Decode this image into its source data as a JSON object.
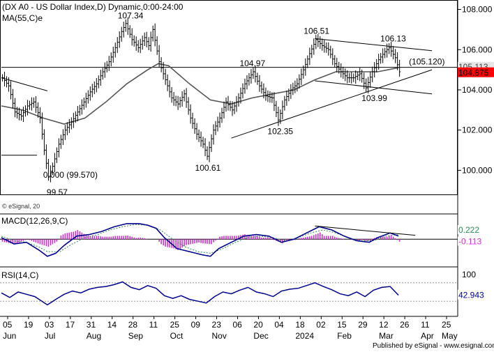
{
  "chart_data": {
    "type": "line",
    "title": "(DX A0 - US Dollar Index,D) Dynamic,0:00-24:00",
    "ma_label": "MA(55,C)e",
    "watermark": "© eSignal, 20",
    "footer": "Published by eSignal - www.esignal.com",
    "price_axis": {
      "min": 98.8,
      "max": 108.4,
      "ticks": [
        "108.000",
        "106.000",
        "104.000",
        "102.000",
        "100.000"
      ],
      "tick_values": [
        108,
        106,
        104,
        102,
        100
      ],
      "current_label": "104.875",
      "current_value": 104.875,
      "ma_current_label": "105.113",
      "ma_current_value": 105.113
    },
    "annotations": [
      {
        "text": "107.34",
        "value": 107.34,
        "bar": 59
      },
      {
        "text": "104.97",
        "value": 104.97,
        "bar": 120
      },
      {
        "text": "106.51",
        "value": 106.51,
        "bar": 150
      },
      {
        "text": "106.13",
        "value": 106.13,
        "bar": 184
      },
      {
        "text": "(105.120)",
        "value": 105.12,
        "bar": 199
      },
      {
        "text": "103.99",
        "value": 103.99,
        "bar": 175
      },
      {
        "text": "102.35",
        "value": 102.35,
        "bar": 132
      },
      {
        "text": "100.61",
        "value": 100.61,
        "bar": 98
      },
      {
        "text": "0.000 (99.570)",
        "value": 99.57,
        "bar": 22
      },
      {
        "text": "99.57",
        "value": 99.57,
        "bar": 22
      }
    ],
    "trendlines": [
      {
        "name": "downtrend-2023",
        "from": [
          0,
          104.6
        ],
        "to": [
          22,
          103.95
        ]
      },
      {
        "name": "support-2023",
        "from": [
          0,
          100.75
        ],
        "to": [
          17,
          100.75
        ]
      },
      {
        "name": "horizontal-105",
        "from": [
          0,
          105.12
        ],
        "to": [
          218,
          105.12
        ]
      },
      {
        "name": "channel-top",
        "from": [
          150,
          106.55
        ],
        "to": [
          206,
          105.95
        ]
      },
      {
        "name": "channel-bottom",
        "from": [
          150,
          104.45
        ],
        "to": [
          206,
          103.8
        ]
      },
      {
        "name": "rising-support",
        "from": [
          110,
          101.6
        ],
        "to": [
          206,
          105.0
        ]
      }
    ],
    "price_path": [
      [
        0,
        104.6
      ],
      [
        3,
        104.2
      ],
      [
        6,
        102.9
      ],
      [
        9,
        102.7
      ],
      [
        12,
        103.2
      ],
      [
        15,
        103.4
      ],
      [
        18,
        102.6
      ],
      [
        20,
        101.0
      ],
      [
        22,
        99.7
      ],
      [
        24,
        100.2
      ],
      [
        27,
        101.3
      ],
      [
        30,
        102.0
      ],
      [
        33,
        102.4
      ],
      [
        36,
        102.9
      ],
      [
        39,
        103.4
      ],
      [
        42,
        103.9
      ],
      [
        45,
        104.3
      ],
      [
        48,
        104.9
      ],
      [
        51,
        105.4
      ],
      [
        54,
        106.1
      ],
      [
        57,
        106.9
      ],
      [
        59,
        107.3
      ],
      [
        62,
        106.5
      ],
      [
        65,
        106.1
      ],
      [
        68,
        106.6
      ],
      [
        70,
        106.2
      ],
      [
        72,
        107.0
      ],
      [
        75,
        105.4
      ],
      [
        78,
        104.5
      ],
      [
        81,
        103.6
      ],
      [
        84,
        103.3
      ],
      [
        87,
        103.8
      ],
      [
        90,
        102.6
      ],
      [
        93,
        101.8
      ],
      [
        96,
        101.3
      ],
      [
        98,
        100.7
      ],
      [
        101,
        102.0
      ],
      [
        104,
        102.6
      ],
      [
        107,
        103.4
      ],
      [
        110,
        103.0
      ],
      [
        113,
        103.6
      ],
      [
        116,
        104.3
      ],
      [
        120,
        104.9
      ],
      [
        123,
        104.2
      ],
      [
        126,
        103.7
      ],
      [
        129,
        103.6
      ],
      [
        132,
        102.5
      ],
      [
        135,
        103.5
      ],
      [
        138,
        104.0
      ],
      [
        141,
        104.3
      ],
      [
        144,
        105.0
      ],
      [
        147,
        105.8
      ],
      [
        150,
        106.5
      ],
      [
        153,
        106.2
      ],
      [
        156,
        106.0
      ],
      [
        159,
        105.3
      ],
      [
        162,
        104.9
      ],
      [
        165,
        104.6
      ],
      [
        168,
        104.6
      ],
      [
        171,
        104.8
      ],
      [
        174,
        104.1
      ],
      [
        177,
        104.9
      ],
      [
        180,
        105.5
      ],
      [
        183,
        105.9
      ],
      [
        185,
        106.1
      ],
      [
        188,
        105.6
      ],
      [
        190,
        104.9
      ]
    ],
    "ma_path": [
      [
        0,
        103.2
      ],
      [
        10,
        103.0
      ],
      [
        20,
        102.6
      ],
      [
        30,
        102.3
      ],
      [
        40,
        102.6
      ],
      [
        50,
        103.4
      ],
      [
        60,
        104.3
      ],
      [
        70,
        105.0
      ],
      [
        75,
        105.3
      ],
      [
        80,
        105.2
      ],
      [
        90,
        104.3
      ],
      [
        100,
        103.5
      ],
      [
        110,
        103.3
      ],
      [
        120,
        103.6
      ],
      [
        130,
        103.8
      ],
      [
        140,
        104.0
      ],
      [
        150,
        104.5
      ],
      [
        160,
        104.9
      ],
      [
        170,
        104.9
      ],
      [
        180,
        104.9
      ],
      [
        190,
        105.1
      ]
    ],
    "macd": {
      "label": "MACD(12,26,9,C)",
      "min": -1.6,
      "max": 1.4,
      "zero": 0,
      "value_label": "0.222",
      "value": 0.222,
      "signal_label": "-0.113",
      "signal_value": -0.113,
      "macd_path": [
        [
          0,
          0.1
        ],
        [
          6,
          -0.3
        ],
        [
          12,
          -0.2
        ],
        [
          18,
          -0.7
        ],
        [
          22,
          -1.1
        ],
        [
          26,
          -0.9
        ],
        [
          30,
          -0.4
        ],
        [
          36,
          0.2
        ],
        [
          42,
          0.3
        ],
        [
          48,
          0.5
        ],
        [
          54,
          0.8
        ],
        [
          60,
          1.0
        ],
        [
          66,
          1.0
        ],
        [
          70,
          0.9
        ],
        [
          74,
          0.7
        ],
        [
          78,
          0.1
        ],
        [
          84,
          -0.6
        ],
        [
          90,
          -0.8
        ],
        [
          96,
          -1.0
        ],
        [
          100,
          -1.1
        ],
        [
          104,
          -0.6
        ],
        [
          110,
          -0.2
        ],
        [
          116,
          0.2
        ],
        [
          122,
          0.3
        ],
        [
          128,
          0.2
        ],
        [
          134,
          -0.2
        ],
        [
          140,
          0.0
        ],
        [
          146,
          0.4
        ],
        [
          152,
          0.8
        ],
        [
          158,
          0.6
        ],
        [
          164,
          0.2
        ],
        [
          170,
          -0.1
        ],
        [
          176,
          -0.2
        ],
        [
          180,
          0.1
        ],
        [
          186,
          0.4
        ],
        [
          190,
          0.2
        ]
      ],
      "signal_path": [
        [
          0,
          0.2
        ],
        [
          6,
          -0.1
        ],
        [
          12,
          -0.2
        ],
        [
          18,
          -0.5
        ],
        [
          22,
          -0.8
        ],
        [
          28,
          -0.8
        ],
        [
          34,
          -0.3
        ],
        [
          40,
          0.1
        ],
        [
          46,
          0.3
        ],
        [
          52,
          0.6
        ],
        [
          58,
          0.8
        ],
        [
          64,
          0.95
        ],
        [
          70,
          0.9
        ],
        [
          76,
          0.6
        ],
        [
          82,
          0.0
        ],
        [
          88,
          -0.5
        ],
        [
          94,
          -0.8
        ],
        [
          100,
          -0.9
        ],
        [
          106,
          -0.6
        ],
        [
          112,
          -0.2
        ],
        [
          118,
          0.1
        ],
        [
          124,
          0.2
        ],
        [
          130,
          0.1
        ],
        [
          136,
          -0.1
        ],
        [
          142,
          0.1
        ],
        [
          148,
          0.4
        ],
        [
          154,
          0.6
        ],
        [
          160,
          0.4
        ],
        [
          166,
          0.1
        ],
        [
          172,
          -0.1
        ],
        [
          178,
          -0.1
        ],
        [
          184,
          0.2
        ],
        [
          190,
          0.3
        ]
      ],
      "trendline": {
        "from": [
          150,
          0.85
        ],
        "to": [
          198,
          0.25
        ]
      }
    },
    "rsi": {
      "label": "RSI(14,C)",
      "min": 0,
      "max": 100,
      "ticks": [
        "100"
      ],
      "tick_values": [
        100
      ],
      "value_label": "42.943",
      "value": 42.943,
      "upper_level": 70,
      "lower_level": 30,
      "rsi_path": [
        [
          0,
          48
        ],
        [
          4,
          38
        ],
        [
          8,
          50
        ],
        [
          12,
          45
        ],
        [
          16,
          40
        ],
        [
          20,
          28
        ],
        [
          22,
          22
        ],
        [
          26,
          34
        ],
        [
          30,
          45
        ],
        [
          34,
          52
        ],
        [
          38,
          48
        ],
        [
          42,
          56
        ],
        [
          46,
          60
        ],
        [
          50,
          62
        ],
        [
          54,
          66
        ],
        [
          58,
          72
        ],
        [
          62,
          60
        ],
        [
          66,
          55
        ],
        [
          70,
          64
        ],
        [
          74,
          58
        ],
        [
          78,
          42
        ],
        [
          82,
          36
        ],
        [
          86,
          42
        ],
        [
          90,
          34
        ],
        [
          94,
          30
        ],
        [
          98,
          26
        ],
        [
          102,
          40
        ],
        [
          106,
          50
        ],
        [
          110,
          46
        ],
        [
          114,
          54
        ],
        [
          118,
          60
        ],
        [
          122,
          50
        ],
        [
          126,
          46
        ],
        [
          130,
          40
        ],
        [
          134,
          52
        ],
        [
          138,
          56
        ],
        [
          142,
          58
        ],
        [
          146,
          64
        ],
        [
          150,
          70
        ],
        [
          154,
          62
        ],
        [
          158,
          55
        ],
        [
          162,
          46
        ],
        [
          166,
          42
        ],
        [
          170,
          50
        ],
        [
          174,
          40
        ],
        [
          178,
          54
        ],
        [
          182,
          60
        ],
        [
          186,
          62
        ],
        [
          190,
          43
        ]
      ]
    },
    "x_axis": {
      "total_bars": 218,
      "date_labels": [
        {
          "text": "05",
          "bar": 3
        },
        {
          "text": "19",
          "bar": 13
        },
        {
          "text": "03",
          "bar": 23
        },
        {
          "text": "17",
          "bar": 33
        },
        {
          "text": "31",
          "bar": 43
        },
        {
          "text": "14",
          "bar": 53
        },
        {
          "text": "28",
          "bar": 63
        },
        {
          "text": "11",
          "bar": 73
        },
        {
          "text": "25",
          "bar": 83
        },
        {
          "text": "09",
          "bar": 93
        },
        {
          "text": "23",
          "bar": 103
        },
        {
          "text": "06",
          "bar": 113
        },
        {
          "text": "20",
          "bar": 123
        },
        {
          "text": "04",
          "bar": 133
        },
        {
          "text": "18",
          "bar": 143
        },
        {
          "text": "02",
          "bar": 153
        },
        {
          "text": "15",
          "bar": 163
        },
        {
          "text": "29",
          "bar": 173
        },
        {
          "text": "12",
          "bar": 183
        },
        {
          "text": "26",
          "bar": 193
        },
        {
          "text": "11",
          "bar": 203
        },
        {
          "text": "25",
          "bar": 213
        }
      ],
      "month_labels": [
        {
          "text": "Jun",
          "bar": 3
        },
        {
          "text": "Jul",
          "bar": 23
        },
        {
          "text": "Aug",
          "bar": 43
        },
        {
          "text": "Sep",
          "bar": 63
        },
        {
          "text": "Oct",
          "bar": 83
        },
        {
          "text": "Nov",
          "bar": 103
        },
        {
          "text": "Dec",
          "bar": 123
        },
        {
          "text": "2024",
          "bar": 143
        },
        {
          "text": "Feb",
          "bar": 163
        },
        {
          "text": "Mar",
          "bar": 183
        },
        {
          "text": "Apr",
          "bar": 203
        },
        {
          "text": "May",
          "bar": 213
        }
      ]
    },
    "colors": {
      "price": "#000000",
      "ma": "#555555",
      "macd_line": "#00008b",
      "macd_signal": "#2e8b57",
      "macd_hist": "#cc33cc",
      "rsi": "#00008b",
      "current_price_bg": "#ff0000",
      "grid": "#bbbbbb"
    }
  }
}
